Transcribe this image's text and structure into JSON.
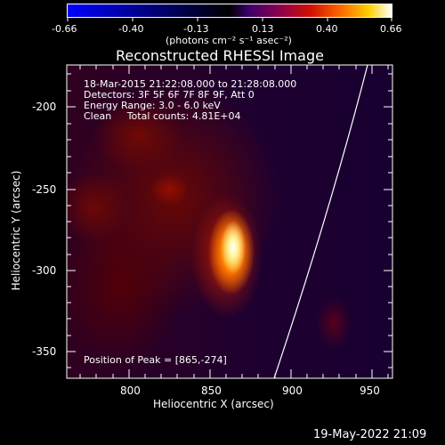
{
  "colorbar": {
    "ticks": [
      "-0.66",
      "-0.40",
      "-0.13",
      "0.13",
      "0.40",
      "0.66"
    ],
    "units": "(photons cm⁻² s⁻¹ asec⁻²)",
    "colors": [
      "#0000ff",
      "#000000",
      "#5a0090",
      "#c00000",
      "#ff8000",
      "#ffffff"
    ]
  },
  "title": "Reconstructed RHESSI Image",
  "info": {
    "time_range": "18-Mar-2015 21:22:08.000 to 21:28:08.000",
    "detectors": "Detectors: 3F 5F 6F 7F 8F 9F, Att 0",
    "energy": "Energy Range: 3.0 - 6.0 keV",
    "clean": "Clean     Total counts: 4.81E+04"
  },
  "peak": "Position of Peak = [865,-274]",
  "axes": {
    "xlabel": "Heliocentric X (arcsec)",
    "ylabel": "Heliocentric Y (arcsec)",
    "xticks": [
      "800",
      "850",
      "900",
      "950"
    ],
    "yticks": [
      "-200",
      "-250",
      "-300",
      "-350"
    ]
  },
  "timestamp": "19-May-2022 21:09"
}
